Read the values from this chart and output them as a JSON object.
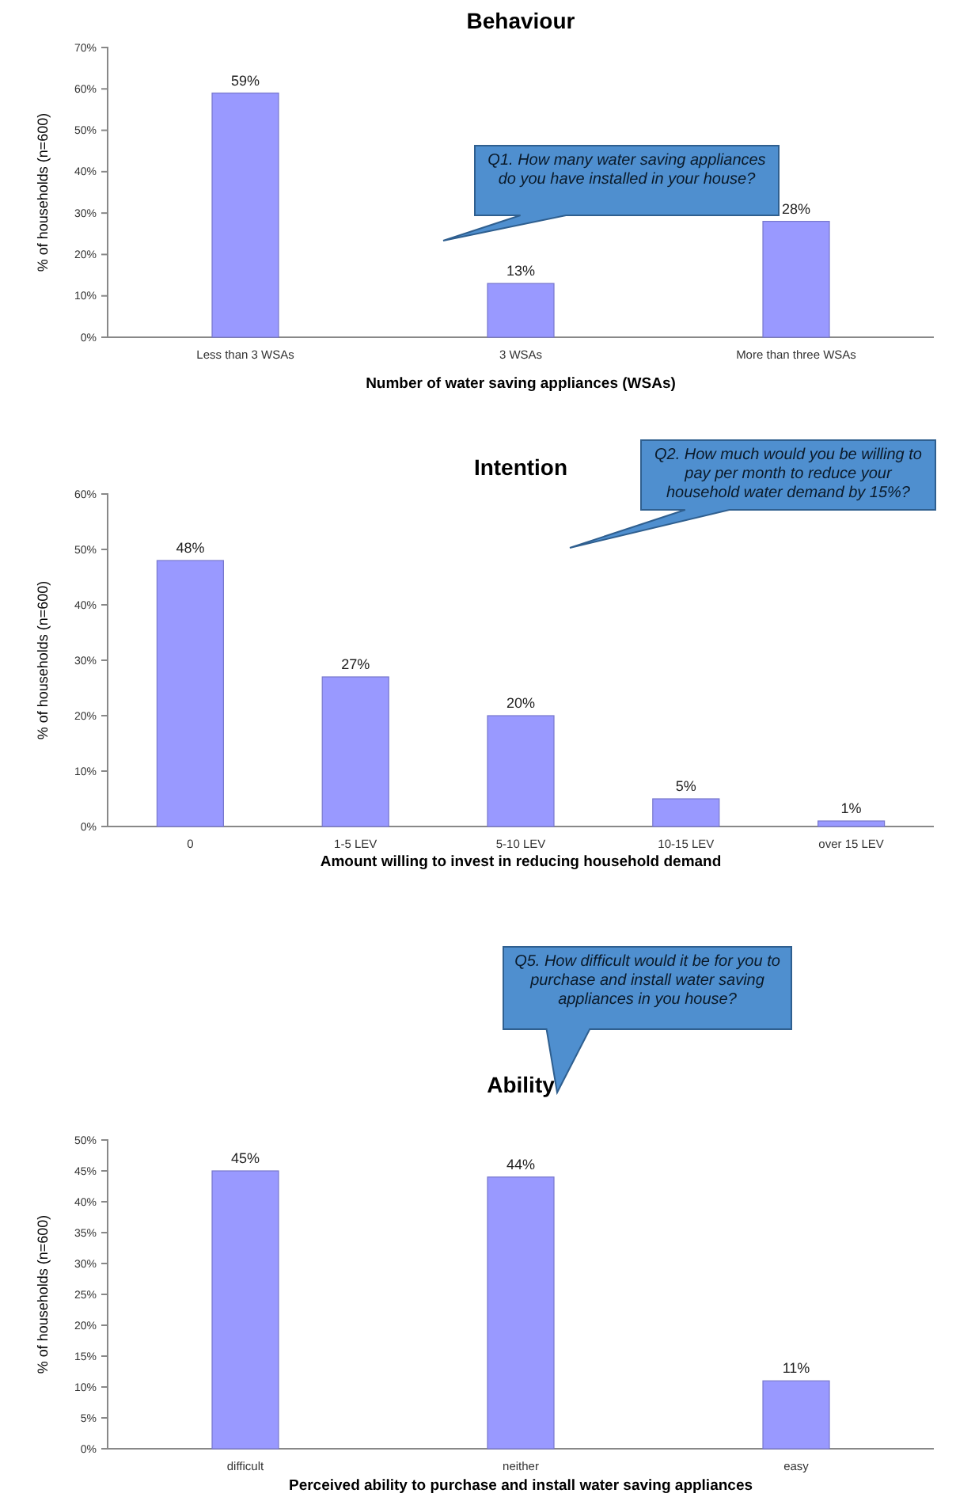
{
  "chart_data": [
    {
      "type": "bar",
      "title": "Behaviour",
      "xlabel": "Number of water saving appliances (WSAs)",
      "ylabel": "% of households (n=600)",
      "categories": [
        "Less than 3 WSAs",
        "3 WSAs",
        "More than three WSAs"
      ],
      "values": [
        59,
        13,
        28
      ],
      "value_labels": [
        "59%",
        "13%",
        "28%"
      ],
      "color": "#9999ff",
      "ylim": [
        0,
        70
      ],
      "yticks": [
        {
          "value": 0,
          "label": "0%"
        },
        {
          "value": 10,
          "label": "10%"
        },
        {
          "value": 20,
          "label": "20%"
        },
        {
          "value": 30,
          "label": "30%"
        },
        {
          "value": 40,
          "label": "40%"
        },
        {
          "value": 50,
          "label": "50%"
        },
        {
          "value": 60,
          "label": "60%"
        },
        {
          "value": 70,
          "label": "70%"
        }
      ],
      "annotations": [
        "Q1. How many water saving appliances do you have installed in your house?"
      ]
    },
    {
      "type": "bar",
      "title": "Intention",
      "xlabel": "Amount willing to invest in reducing household demand",
      "ylabel": "% of households (n=600)",
      "categories": [
        "0",
        "1-5 LEV",
        "5-10 LEV",
        "10-15 LEV",
        "over 15 LEV"
      ],
      "values": [
        48,
        27,
        20,
        5,
        1
      ],
      "value_labels": [
        "48%",
        "27%",
        "20%",
        "5%",
        "1%"
      ],
      "color": "#9999ff",
      "ylim": [
        0,
        60
      ],
      "yticks": [
        {
          "value": 0,
          "label": "0%"
        },
        {
          "value": 10,
          "label": "10%"
        },
        {
          "value": 20,
          "label": "20%"
        },
        {
          "value": 30,
          "label": "30%"
        },
        {
          "value": 40,
          "label": "40%"
        },
        {
          "value": 50,
          "label": "50%"
        },
        {
          "value": 60,
          "label": "60%"
        }
      ],
      "annotations": [
        "Q2. How much would you be willing to pay per month to reduce your household water demand by 15%?"
      ]
    },
    {
      "type": "bar",
      "title": "Ability",
      "xlabel": "Perceived ability to purchase and install water saving appliances",
      "ylabel": "% of households (n=600)",
      "categories": [
        "difficult",
        "neither",
        "easy"
      ],
      "values": [
        45,
        44,
        11
      ],
      "value_labels": [
        "45%",
        "44%",
        "11%"
      ],
      "color": "#9999ff",
      "ylim": [
        0,
        50
      ],
      "yticks": [
        {
          "value": 0,
          "label": "0%"
        },
        {
          "value": 5,
          "label": "5%"
        },
        {
          "value": 10,
          "label": "10%"
        },
        {
          "value": 15,
          "label": "15%"
        },
        {
          "value": 20,
          "label": "20%"
        },
        {
          "value": 25,
          "label": "25%"
        },
        {
          "value": 30,
          "label": "30%"
        },
        {
          "value": 35,
          "label": "35%"
        },
        {
          "value": 40,
          "label": "40%"
        },
        {
          "value": 45,
          "label": "45%"
        },
        {
          "value": 50,
          "label": "50%"
        }
      ],
      "annotations": [
        "Q5. How difficult would it be for you to purchase and install water saving appliances in you house?"
      ]
    }
  ]
}
